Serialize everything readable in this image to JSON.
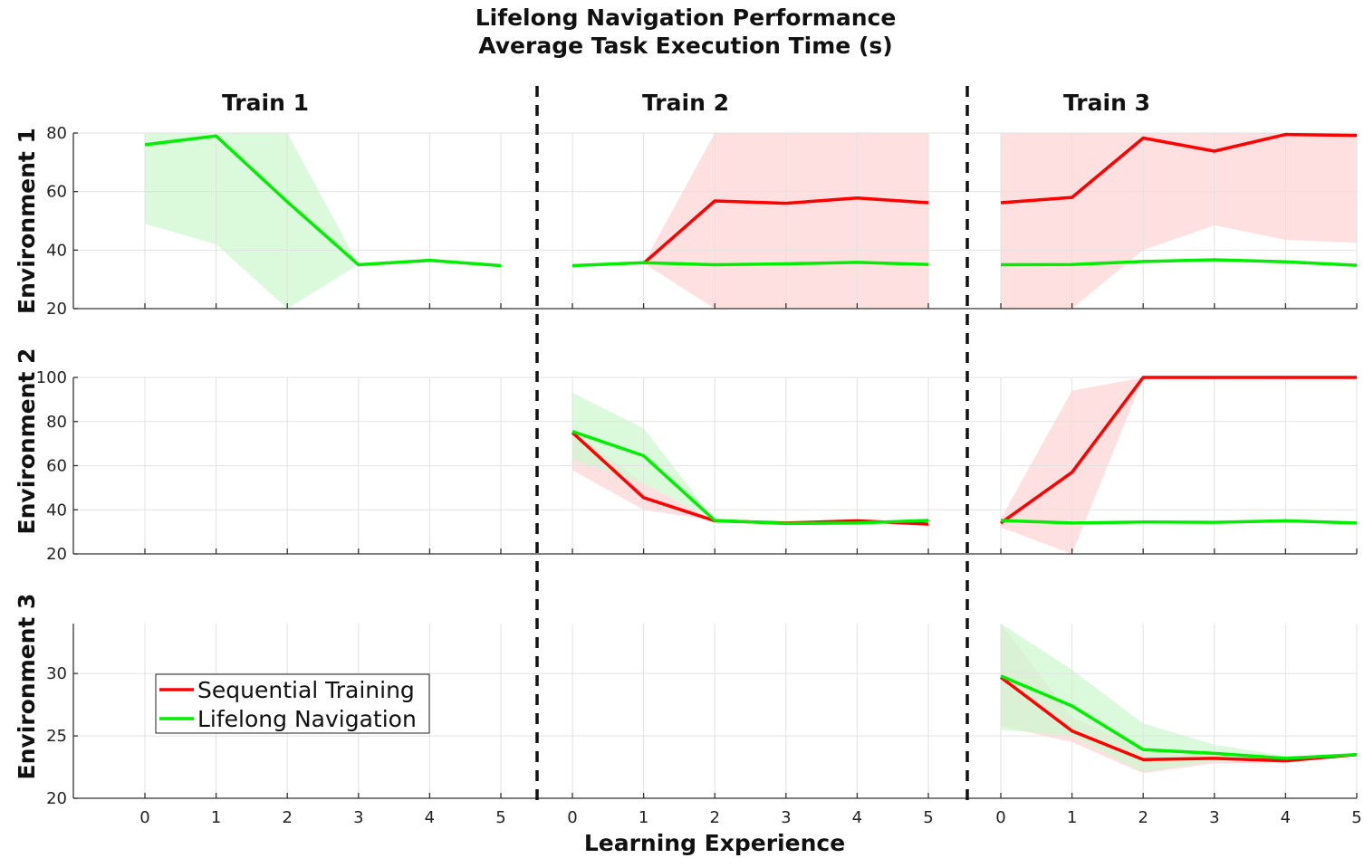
{
  "chart_data": {
    "type": "line",
    "title": [
      "Lifelong Navigation Performance",
      "Average Task Execution Time (s)"
    ],
    "xlabel": "Learning Experience",
    "columns": [
      "Train 1",
      "Train 2",
      "Train 3"
    ],
    "rows": [
      {
        "label": "Environment 1",
        "ylim": [
          20,
          80
        ],
        "yticks": [
          20,
          40,
          60,
          80
        ]
      },
      {
        "label": "Environment 2",
        "ylim": [
          20,
          100
        ],
        "yticks": [
          20,
          40,
          60,
          80,
          100
        ]
      },
      {
        "label": "Environment 3",
        "ylim": [
          20,
          34
        ],
        "yticks": [
          20,
          25,
          30
        ]
      }
    ],
    "x": [
      0,
      1,
      2,
      3,
      4,
      5
    ],
    "grid": true,
    "legend": {
      "placement": "bottom-left (Environment 3, Train 1)"
    },
    "series": [
      {
        "name": "Sequential Training",
        "color": "#ff0000",
        "band_color": "#ffd6d6"
      },
      {
        "name": "Lifelong Navigation",
        "color": "#00ee00",
        "band_color": "#cff7cf"
      }
    ],
    "panels": [
      {
        "row": 0,
        "col": 0,
        "lines": [
          {
            "series": 1,
            "values": [
              76,
              79,
              56.5,
              35,
              36.5,
              34.7
            ],
            "lower": [
              49,
              42,
              20,
              35,
              36.5,
              34.7
            ],
            "upper": [
              80,
              80,
              80,
              35,
              36.5,
              34.7
            ]
          }
        ]
      },
      {
        "row": 0,
        "col": 1,
        "lines": [
          {
            "series": 0,
            "values": [
              null,
              35.5,
              56.8,
              56,
              57.8,
              56.2
            ],
            "lower": [
              null,
              35.5,
              20,
              20,
              20,
              20
            ],
            "upper": [
              null,
              35.5,
              80,
              80,
              80,
              80
            ]
          },
          {
            "series": 1,
            "values": [
              34.7,
              35.7,
              35,
              35.3,
              35.8,
              35.1
            ],
            "lower": [
              34.7,
              35.7,
              35,
              35.3,
              35.8,
              35.1
            ],
            "upper": [
              34.7,
              35.7,
              35,
              35.3,
              35.8,
              35.1
            ]
          }
        ]
      },
      {
        "row": 0,
        "col": 2,
        "lines": [
          {
            "series": 0,
            "values": [
              56.2,
              58,
              78.3,
              73.8,
              79.5,
              79.2
            ],
            "lower": [
              20,
              20,
              40,
              48.5,
              43.5,
              42.5
            ],
            "upper": [
              80,
              80,
              80,
              80,
              80,
              80
            ]
          },
          {
            "series": 1,
            "values": [
              35,
              35.1,
              36.1,
              36.7,
              36,
              34.8
            ],
            "lower": [
              35,
              35.1,
              36.1,
              36.7,
              36,
              34.8
            ],
            "upper": [
              35,
              35.1,
              36.1,
              36.7,
              36,
              34.8
            ]
          }
        ]
      },
      {
        "row": 1,
        "col": 1,
        "lines": [
          {
            "series": 0,
            "values": [
              75,
              45.5,
              35,
              34,
              35,
              33.5
            ],
            "lower": [
              58,
              40,
              35,
              34,
              35,
              33.5
            ],
            "upper": [
              76,
              52,
              35,
              34,
              35,
              33.5
            ]
          },
          {
            "series": 1,
            "values": [
              75.5,
              64.5,
              35.2,
              33.8,
              34,
              35.2
            ],
            "lower": [
              63,
              52,
              35.2,
              33.8,
              34,
              35.2
            ],
            "upper": [
              93,
              77,
              35.2,
              33.8,
              34,
              35.2
            ]
          }
        ]
      },
      {
        "row": 1,
        "col": 2,
        "lines": [
          {
            "series": 0,
            "values": [
              34,
              57,
              100,
              100,
              100,
              100
            ],
            "lower": [
              32,
              20,
              100,
              100,
              100,
              100
            ],
            "upper": [
              36,
              94,
              100,
              100,
              100,
              100
            ]
          },
          {
            "series": 1,
            "values": [
              35.2,
              34,
              34.5,
              34.3,
              35,
              34
            ],
            "lower": [
              35.2,
              34,
              34.5,
              34.3,
              35,
              34
            ],
            "upper": [
              35.2,
              34,
              34.5,
              34.3,
              35,
              34
            ]
          }
        ]
      },
      {
        "row": 2,
        "col": 2,
        "lines": [
          {
            "series": 0,
            "values": [
              29.7,
              25.4,
              23.1,
              23.2,
              23,
              23.5
            ],
            "lower": [
              25.8,
              24.5,
              22,
              22.8,
              22.8,
              23.5
            ],
            "upper": [
              34,
              26.5,
              24,
              23.6,
              23.2,
              23.5
            ]
          },
          {
            "series": 1,
            "values": [
              29.8,
              27.4,
              23.9,
              23.6,
              23.2,
              23.5
            ],
            "lower": [
              25.5,
              25,
              22.1,
              23,
              23,
              23.5
            ],
            "upper": [
              34,
              30.3,
              26,
              24.3,
              23.4,
              23.5
            ]
          }
        ]
      }
    ]
  }
}
